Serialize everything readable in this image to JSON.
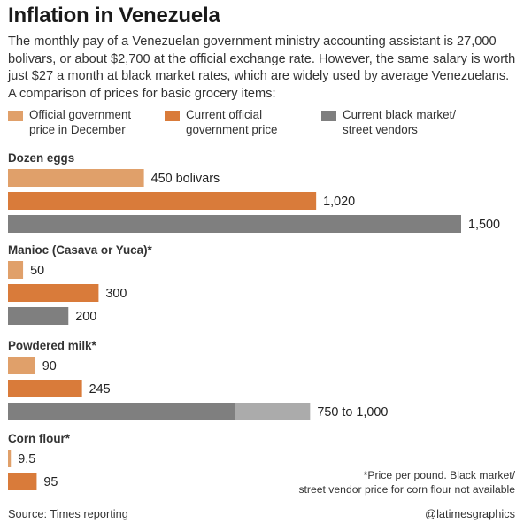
{
  "title": "Inflation in Venezuela",
  "intro": "The monthly pay of a Venezuelan government ministry accounting assistant is 27,000 bolivars, or about $2,700 at the official exchange rate. However, the same salary is worth just $27 a month at black market rates, which are widely used by average Venezuelans. A comparison of prices for basic grocery items:",
  "legend": [
    {
      "label": "Official government\nprice in December",
      "color": "#e0a06a"
    },
    {
      "label": "Current official\ngovernment price",
      "color": "#d97b3a"
    },
    {
      "label": "Current black market/\nstreet vendors",
      "color": "#7f7f7f"
    }
  ],
  "chart_data": {
    "type": "bar",
    "orientation": "horizontal",
    "unit": "bolivars",
    "series": [
      {
        "name": "Official government price in December",
        "color": "#e0a06a"
      },
      {
        "name": "Current official government price",
        "color": "#d97b3a"
      },
      {
        "name": "Current black market/street vendors",
        "color": "#7f7f7f",
        "range_color": "#ababab"
      }
    ],
    "groups": [
      {
        "category": "Dozen eggs",
        "bars": [
          {
            "series": 0,
            "value": 450,
            "label": "450 bolivars"
          },
          {
            "series": 1,
            "value": 1020,
            "label": "1,020"
          },
          {
            "series": 2,
            "value": 1500,
            "label": "1,500"
          }
        ]
      },
      {
        "category": "Manioc (Casava or Yuca)*",
        "bars": [
          {
            "series": 0,
            "value": 50,
            "label": "50"
          },
          {
            "series": 1,
            "value": 300,
            "label": "300"
          },
          {
            "series": 2,
            "value": 200,
            "label": "200"
          }
        ]
      },
      {
        "category": "Powdered milk*",
        "bars": [
          {
            "series": 0,
            "value": 90,
            "label": "90"
          },
          {
            "series": 1,
            "value": 245,
            "label": "245"
          },
          {
            "series": 2,
            "value": 750,
            "value_high": 1000,
            "label": "750 to 1,000"
          }
        ]
      },
      {
        "category": "Corn flour*",
        "bars": [
          {
            "series": 0,
            "value": 9.5,
            "label": "9.5"
          },
          {
            "series": 1,
            "value": 95,
            "label": "95"
          }
        ]
      }
    ]
  },
  "footnote": "*Price per pound. Black market/\nstreet vendor price for corn flour not available",
  "source": "Source: Times reporting",
  "credit": "@latimesgraphics"
}
